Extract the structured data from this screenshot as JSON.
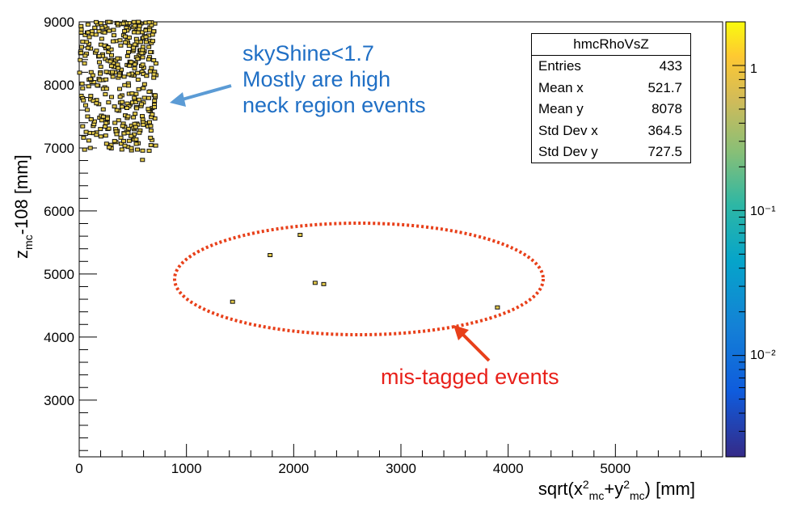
{
  "chart_data": {
    "type": "scatter",
    "title": "",
    "xlabel": "sqrt(x²mc+y²mc) [mm]",
    "ylabel": "zmc-108 [mm]",
    "xlim": [
      0,
      6000
    ],
    "ylim": [
      2100,
      9000
    ],
    "x_ticks": [
      "0",
      "1000",
      "2000",
      "3000",
      "4000",
      "5000"
    ],
    "y_ticks": [
      "3000",
      "4000",
      "5000",
      "6000",
      "7000",
      "8000",
      "9000"
    ],
    "colorbar": {
      "scale": "log",
      "range": [
        0.002,
        2
      ],
      "ticks": [
        "1",
        "10⁻¹",
        "10⁻²"
      ]
    },
    "mistagged_points": [
      {
        "x": 1430,
        "y": 4560
      },
      {
        "x": 1780,
        "y": 5300
      },
      {
        "x": 2060,
        "y": 5620
      },
      {
        "x": 2200,
        "y": 4860
      },
      {
        "x": 2280,
        "y": 4840
      },
      {
        "x": 3900,
        "y": 4470
      },
      {
        "x": 590,
        "y": 6810
      }
    ],
    "cluster": {
      "x_range": [
        0,
        720
      ],
      "y_range": [
        6950,
        9000
      ],
      "count": 400
    }
  },
  "stats": {
    "title": "hmcRhoVsZ",
    "rows": [
      {
        "label": "Entries",
        "value": "433"
      },
      {
        "label": "Mean x",
        "value": "521.7"
      },
      {
        "label": "Mean y",
        "value": "8078"
      },
      {
        "label": "Std Dev x",
        "value": "364.5"
      },
      {
        "label": "Std Dev y",
        "value": "727.5"
      }
    ]
  },
  "annotations": {
    "blue_lines": [
      "skyShine<1.7",
      "Mostly are high",
      "neck region events"
    ],
    "red_text": "mis-tagged events"
  },
  "colors": {
    "blue": "#1f6fc5",
    "red": "#e8201a",
    "point_fill": "#e3c94a"
  }
}
